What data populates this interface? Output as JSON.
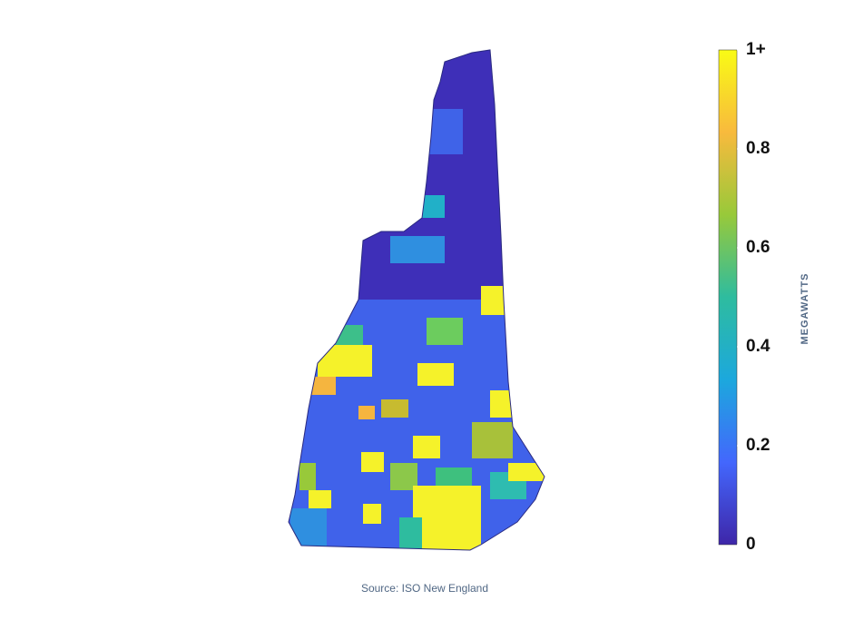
{
  "chart_data": {
    "type": "choropleth",
    "source": "Source: ISO New England",
    "colorbar": {
      "title": "MEGAWATTS",
      "range": [
        0,
        1
      ],
      "ticks": [
        0,
        0.2,
        0.4,
        0.6,
        0.8,
        {
          "value": 1,
          "label": "1+"
        }
      ],
      "colorscale": [
        "#3e26a8",
        "#4367fd",
        "#1ca8dd",
        "#2ebc9f",
        "#98c93a",
        "#f8ba3d",
        "#f9fb15"
      ]
    }
  }
}
